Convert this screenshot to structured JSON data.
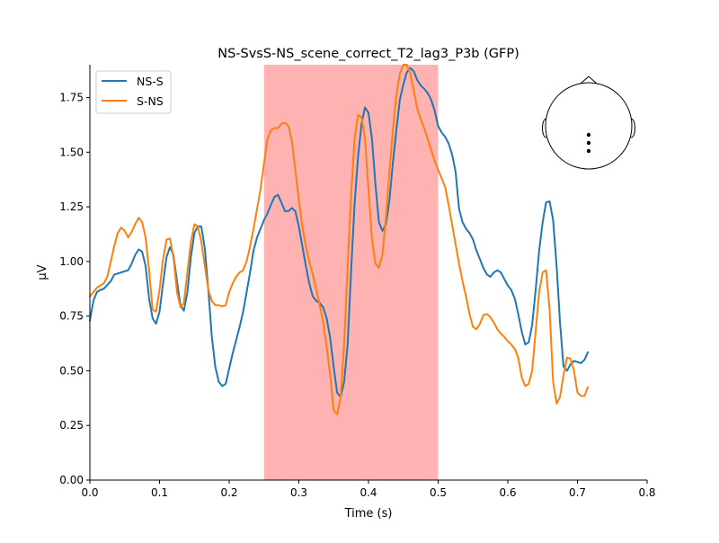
{
  "chart_data": {
    "type": "line",
    "title": "NS-SvsS-NS_scene_correct_T2_lag3_P3b (GFP)",
    "xlabel": "Time (s)",
    "ylabel": "µV",
    "xlim": [
      0.0,
      0.8
    ],
    "ylim": [
      0.0,
      1.9
    ],
    "xticks": [
      0.0,
      0.1,
      0.2,
      0.3,
      0.4,
      0.5,
      0.6,
      0.7,
      0.8
    ],
    "xtick_labels": [
      "0.0",
      "0.1",
      "0.2",
      "0.3",
      "0.4",
      "0.5",
      "0.6",
      "0.7",
      "0.8"
    ],
    "yticks": [
      0.0,
      0.25,
      0.5,
      0.75,
      1.0,
      1.25,
      1.5,
      1.75
    ],
    "ytick_labels": [
      "0.00",
      "0.25",
      "0.50",
      "0.75",
      "1.00",
      "1.25",
      "1.50",
      "1.75"
    ],
    "grid": false,
    "legend_position": "top-left",
    "highlight_span": {
      "x0": 0.25,
      "x1": 0.5,
      "color": "#ffb2b2"
    },
    "sensor_inset": {
      "position": "top-right",
      "sensor_count": 3
    },
    "series": [
      {
        "name": "NS-S",
        "color": "#1f77b4",
        "points": [
          [
            0.0,
            0.73
          ],
          [
            0.005,
            0.82
          ],
          [
            0.01,
            0.86
          ],
          [
            0.015,
            0.87
          ],
          [
            0.02,
            0.875
          ],
          [
            0.03,
            0.91
          ],
          [
            0.035,
            0.94
          ],
          [
            0.045,
            0.95
          ],
          [
            0.055,
            0.96
          ],
          [
            0.06,
            0.99
          ],
          [
            0.065,
            1.03
          ],
          [
            0.07,
            1.055
          ],
          [
            0.075,
            1.045
          ],
          [
            0.08,
            0.98
          ],
          [
            0.085,
            0.83
          ],
          [
            0.09,
            0.74
          ],
          [
            0.095,
            0.715
          ],
          [
            0.1,
            0.77
          ],
          [
            0.105,
            0.9
          ],
          [
            0.11,
            1.02
          ],
          [
            0.115,
            1.065
          ],
          [
            0.12,
            1.03
          ],
          [
            0.125,
            0.91
          ],
          [
            0.13,
            0.8
          ],
          [
            0.135,
            0.775
          ],
          [
            0.14,
            0.86
          ],
          [
            0.145,
            1.02
          ],
          [
            0.15,
            1.13
          ],
          [
            0.155,
            1.16
          ],
          [
            0.16,
            1.16
          ],
          [
            0.165,
            1.06
          ],
          [
            0.17,
            0.87
          ],
          [
            0.175,
            0.66
          ],
          [
            0.18,
            0.52
          ],
          [
            0.185,
            0.45
          ],
          [
            0.19,
            0.43
          ],
          [
            0.195,
            0.44
          ],
          [
            0.2,
            0.51
          ],
          [
            0.205,
            0.58
          ],
          [
            0.21,
            0.64
          ],
          [
            0.215,
            0.7
          ],
          [
            0.22,
            0.77
          ],
          [
            0.225,
            0.86
          ],
          [
            0.23,
            0.95
          ],
          [
            0.235,
            1.05
          ],
          [
            0.24,
            1.11
          ],
          [
            0.245,
            1.15
          ],
          [
            0.25,
            1.19
          ],
          [
            0.255,
            1.22
          ],
          [
            0.26,
            1.26
          ],
          [
            0.265,
            1.295
          ],
          [
            0.27,
            1.305
          ],
          [
            0.275,
            1.27
          ],
          [
            0.28,
            1.23
          ],
          [
            0.285,
            1.23
          ],
          [
            0.29,
            1.245
          ],
          [
            0.295,
            1.23
          ],
          [
            0.3,
            1.16
          ],
          [
            0.305,
            1.07
          ],
          [
            0.31,
            0.98
          ],
          [
            0.315,
            0.9
          ],
          [
            0.32,
            0.84
          ],
          [
            0.325,
            0.82
          ],
          [
            0.33,
            0.81
          ],
          [
            0.335,
            0.79
          ],
          [
            0.34,
            0.74
          ],
          [
            0.345,
            0.65
          ],
          [
            0.35,
            0.52
          ],
          [
            0.355,
            0.4
          ],
          [
            0.36,
            0.38
          ],
          [
            0.365,
            0.45
          ],
          [
            0.37,
            0.62
          ],
          [
            0.375,
            0.95
          ],
          [
            0.38,
            1.26
          ],
          [
            0.385,
            1.48
          ],
          [
            0.39,
            1.63
          ],
          [
            0.395,
            1.705
          ],
          [
            0.4,
            1.68
          ],
          [
            0.405,
            1.56
          ],
          [
            0.41,
            1.35
          ],
          [
            0.415,
            1.18
          ],
          [
            0.42,
            1.14
          ],
          [
            0.425,
            1.17
          ],
          [
            0.43,
            1.28
          ],
          [
            0.435,
            1.45
          ],
          [
            0.44,
            1.6
          ],
          [
            0.445,
            1.74
          ],
          [
            0.45,
            1.81
          ],
          [
            0.455,
            1.865
          ],
          [
            0.46,
            1.885
          ],
          [
            0.465,
            1.87
          ],
          [
            0.47,
            1.83
          ],
          [
            0.475,
            1.805
          ],
          [
            0.48,
            1.79
          ],
          [
            0.485,
            1.77
          ],
          [
            0.49,
            1.74
          ],
          [
            0.495,
            1.69
          ],
          [
            0.5,
            1.62
          ],
          [
            0.505,
            1.59
          ],
          [
            0.51,
            1.57
          ],
          [
            0.515,
            1.54
          ],
          [
            0.52,
            1.49
          ],
          [
            0.525,
            1.41
          ],
          [
            0.53,
            1.24
          ],
          [
            0.535,
            1.18
          ],
          [
            0.54,
            1.15
          ],
          [
            0.545,
            1.13
          ],
          [
            0.55,
            1.1
          ],
          [
            0.555,
            1.05
          ],
          [
            0.56,
            1.01
          ],
          [
            0.565,
            0.97
          ],
          [
            0.57,
            0.94
          ],
          [
            0.575,
            0.93
          ],
          [
            0.58,
            0.95
          ],
          [
            0.585,
            0.96
          ],
          [
            0.59,
            0.95
          ],
          [
            0.595,
            0.92
          ],
          [
            0.6,
            0.89
          ],
          [
            0.605,
            0.87
          ],
          [
            0.61,
            0.83
          ],
          [
            0.615,
            0.76
          ],
          [
            0.62,
            0.68
          ],
          [
            0.625,
            0.62
          ],
          [
            0.63,
            0.63
          ],
          [
            0.635,
            0.71
          ],
          [
            0.64,
            0.87
          ],
          [
            0.645,
            1.05
          ],
          [
            0.65,
            1.18
          ],
          [
            0.655,
            1.27
          ],
          [
            0.66,
            1.275
          ],
          [
            0.665,
            1.19
          ],
          [
            0.67,
            0.98
          ],
          [
            0.675,
            0.72
          ],
          [
            0.68,
            0.52
          ],
          [
            0.685,
            0.5
          ],
          [
            0.69,
            0.53
          ],
          [
            0.695,
            0.545
          ],
          [
            0.7,
            0.54
          ],
          [
            0.705,
            0.535
          ],
          [
            0.71,
            0.55
          ],
          [
            0.715,
            0.585
          ]
        ]
      },
      {
        "name": "S-NS",
        "color": "#ff7f0e",
        "points": [
          [
            0.0,
            0.84
          ],
          [
            0.01,
            0.88
          ],
          [
            0.02,
            0.9
          ],
          [
            0.025,
            0.93
          ],
          [
            0.03,
            1.0
          ],
          [
            0.035,
            1.07
          ],
          [
            0.04,
            1.13
          ],
          [
            0.045,
            1.155
          ],
          [
            0.05,
            1.14
          ],
          [
            0.055,
            1.11
          ],
          [
            0.06,
            1.135
          ],
          [
            0.065,
            1.17
          ],
          [
            0.07,
            1.2
          ],
          [
            0.075,
            1.18
          ],
          [
            0.08,
            1.11
          ],
          [
            0.085,
            0.96
          ],
          [
            0.09,
            0.78
          ],
          [
            0.095,
            0.77
          ],
          [
            0.1,
            0.87
          ],
          [
            0.105,
            1.01
          ],
          [
            0.11,
            1.1
          ],
          [
            0.115,
            1.105
          ],
          [
            0.12,
            1.02
          ],
          [
            0.125,
            0.86
          ],
          [
            0.13,
            0.79
          ],
          [
            0.135,
            0.81
          ],
          [
            0.14,
            0.95
          ],
          [
            0.145,
            1.09
          ],
          [
            0.15,
            1.17
          ],
          [
            0.155,
            1.16
          ],
          [
            0.16,
            1.09
          ],
          [
            0.165,
            0.98
          ],
          [
            0.17,
            0.87
          ],
          [
            0.175,
            0.82
          ],
          [
            0.18,
            0.8
          ],
          [
            0.185,
            0.8
          ],
          [
            0.19,
            0.795
          ],
          [
            0.195,
            0.8
          ],
          [
            0.2,
            0.86
          ],
          [
            0.205,
            0.9
          ],
          [
            0.21,
            0.93
          ],
          [
            0.215,
            0.95
          ],
          [
            0.22,
            0.96
          ],
          [
            0.225,
            1.0
          ],
          [
            0.23,
            1.07
          ],
          [
            0.235,
            1.15
          ],
          [
            0.24,
            1.24
          ],
          [
            0.245,
            1.33
          ],
          [
            0.25,
            1.45
          ],
          [
            0.255,
            1.56
          ],
          [
            0.26,
            1.6
          ],
          [
            0.265,
            1.61
          ],
          [
            0.27,
            1.61
          ],
          [
            0.275,
            1.63
          ],
          [
            0.28,
            1.635
          ],
          [
            0.285,
            1.62
          ],
          [
            0.29,
            1.55
          ],
          [
            0.295,
            1.42
          ],
          [
            0.3,
            1.28
          ],
          [
            0.305,
            1.16
          ],
          [
            0.31,
            1.07
          ],
          [
            0.315,
            1.0
          ],
          [
            0.32,
            0.94
          ],
          [
            0.325,
            0.87
          ],
          [
            0.33,
            0.8
          ],
          [
            0.335,
            0.72
          ],
          [
            0.34,
            0.61
          ],
          [
            0.345,
            0.48
          ],
          [
            0.35,
            0.32
          ],
          [
            0.355,
            0.3
          ],
          [
            0.36,
            0.38
          ],
          [
            0.365,
            0.62
          ],
          [
            0.37,
            0.98
          ],
          [
            0.375,
            1.3
          ],
          [
            0.38,
            1.56
          ],
          [
            0.385,
            1.67
          ],
          [
            0.39,
            1.66
          ],
          [
            0.395,
            1.56
          ],
          [
            0.4,
            1.33
          ],
          [
            0.405,
            1.1
          ],
          [
            0.41,
            0.99
          ],
          [
            0.415,
            0.97
          ],
          [
            0.42,
            1.03
          ],
          [
            0.425,
            1.2
          ],
          [
            0.43,
            1.41
          ],
          [
            0.435,
            1.6
          ],
          [
            0.44,
            1.76
          ],
          [
            0.445,
            1.86
          ],
          [
            0.45,
            1.9
          ],
          [
            0.455,
            1.9
          ],
          [
            0.46,
            1.86
          ],
          [
            0.465,
            1.78
          ],
          [
            0.47,
            1.7
          ],
          [
            0.475,
            1.65
          ],
          [
            0.48,
            1.61
          ],
          [
            0.485,
            1.56
          ],
          [
            0.49,
            1.51
          ],
          [
            0.495,
            1.46
          ],
          [
            0.5,
            1.42
          ],
          [
            0.505,
            1.38
          ],
          [
            0.51,
            1.34
          ],
          [
            0.515,
            1.26
          ],
          [
            0.52,
            1.17
          ],
          [
            0.525,
            1.08
          ],
          [
            0.53,
            0.99
          ],
          [
            0.535,
            0.91
          ],
          [
            0.54,
            0.84
          ],
          [
            0.545,
            0.76
          ],
          [
            0.55,
            0.7
          ],
          [
            0.555,
            0.69
          ],
          [
            0.56,
            0.715
          ],
          [
            0.565,
            0.755
          ],
          [
            0.57,
            0.76
          ],
          [
            0.575,
            0.745
          ],
          [
            0.58,
            0.72
          ],
          [
            0.585,
            0.69
          ],
          [
            0.59,
            0.67
          ],
          [
            0.595,
            0.655
          ],
          [
            0.6,
            0.635
          ],
          [
            0.605,
            0.62
          ],
          [
            0.61,
            0.6
          ],
          [
            0.615,
            0.56
          ],
          [
            0.62,
            0.47
          ],
          [
            0.625,
            0.43
          ],
          [
            0.63,
            0.44
          ],
          [
            0.635,
            0.5
          ],
          [
            0.64,
            0.68
          ],
          [
            0.645,
            0.86
          ],
          [
            0.65,
            0.95
          ],
          [
            0.655,
            0.96
          ],
          [
            0.66,
            0.78
          ],
          [
            0.665,
            0.45
          ],
          [
            0.67,
            0.35
          ],
          [
            0.675,
            0.38
          ],
          [
            0.68,
            0.48
          ],
          [
            0.685,
            0.56
          ],
          [
            0.69,
            0.555
          ],
          [
            0.695,
            0.5
          ],
          [
            0.7,
            0.4
          ],
          [
            0.705,
            0.385
          ],
          [
            0.71,
            0.385
          ],
          [
            0.715,
            0.425
          ]
        ]
      }
    ]
  }
}
